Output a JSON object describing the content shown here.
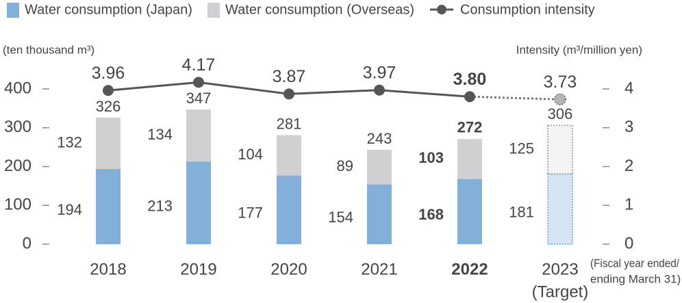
{
  "chart_data": {
    "type": "bar-line",
    "categories": [
      "2018",
      "2019",
      "2020",
      "2021",
      "2022",
      "2023"
    ],
    "target_note": "(Target)",
    "series": [
      {
        "name": "Water consumption (Japan)",
        "color": "#82b0d9",
        "values": [
          194,
          213,
          177,
          154,
          168,
          181
        ]
      },
      {
        "name": "Water consumption (Overseas)",
        "color": "#d0d0d2",
        "values": [
          132,
          134,
          104,
          89,
          103,
          125
        ]
      },
      {
        "name": "Consumption intensity",
        "color": "#555555",
        "axis": "y2",
        "values": [
          3.96,
          4.17,
          3.87,
          3.97,
          3.8,
          3.73
        ],
        "value_labels": [
          "3.96",
          "4.17",
          "3.87",
          "3.97",
          "3.80",
          "3.73"
        ]
      }
    ],
    "totals": [
      326,
      347,
      281,
      243,
      272,
      306
    ],
    "ylabel": "(ten thousand m³)",
    "y2label": "Intensity (m³/million yen)",
    "note": [
      "(Fiscal year ended/",
      "ending March 31)"
    ],
    "ylim": [
      0,
      400
    ],
    "yticks": [
      0,
      100,
      200,
      300,
      400
    ],
    "y2lim": [
      0,
      4
    ],
    "y2ticks": [
      0,
      1,
      2,
      3,
      4
    ]
  }
}
